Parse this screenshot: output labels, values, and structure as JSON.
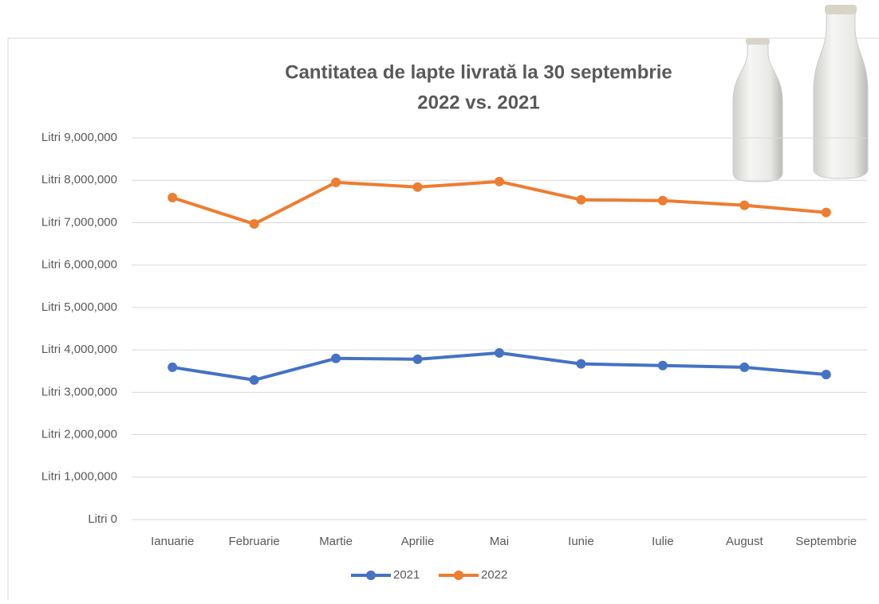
{
  "chart_data": {
    "type": "line",
    "title": "Cantitatea de lapte livrată la 30 septembrie",
    "subtitle": "2022 vs. 2021",
    "categories": [
      "Ianuarie",
      "Februarie",
      "Martie",
      "Aprilie",
      "Mai",
      "Iunie",
      "Iulie",
      "August",
      "Septembrie"
    ],
    "series": [
      {
        "name": "2021",
        "color": "#4472c4",
        "values": [
          3590000,
          3290000,
          3800000,
          3780000,
          3930000,
          3670000,
          3630000,
          3590000,
          3420000
        ]
      },
      {
        "name": "2022",
        "color": "#ed7d31",
        "values": [
          7590000,
          6970000,
          7950000,
          7840000,
          7970000,
          7540000,
          7520000,
          7410000,
          7240000
        ]
      }
    ],
    "ylim": [
      0,
      9000000
    ],
    "yticks": [
      {
        "value": 0,
        "label": "Litri 0"
      },
      {
        "value": 1000000,
        "label": "Litri 1,000,000"
      },
      {
        "value": 2000000,
        "label": "Litri 2,000,000"
      },
      {
        "value": 3000000,
        "label": "Litri 3,000,000"
      },
      {
        "value": 4000000,
        "label": "Litri 4,000,000"
      },
      {
        "value": 5000000,
        "label": "Litri 5,000,000"
      },
      {
        "value": 6000000,
        "label": "Litri 6,000,000"
      },
      {
        "value": 7000000,
        "label": "Litri 7,000,000"
      },
      {
        "value": 8000000,
        "label": "Litri 8,000,000"
      },
      {
        "value": 9000000,
        "label": "Litri 9,000,000"
      }
    ],
    "grid": true,
    "legend": "bottom"
  }
}
